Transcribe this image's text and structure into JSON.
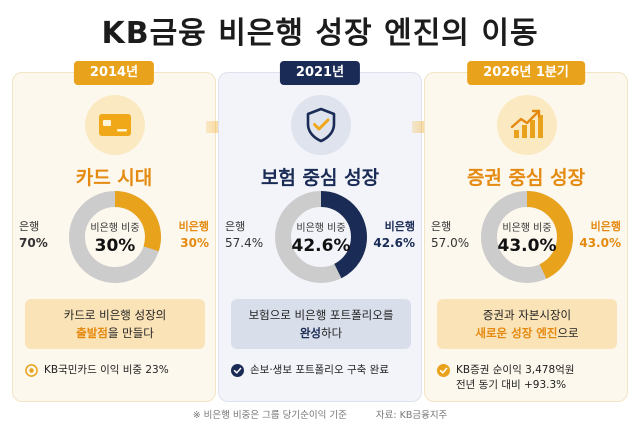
{
  "title": "KB금융 비은행 성장 엔진의 이동",
  "colors": {
    "gold": "#e9a21b",
    "gold_text": "#e48a10",
    "navy": "#1a2b55",
    "gray": "#cccccc"
  },
  "panels": [
    {
      "year": "2014년",
      "icon": "credit-card-icon",
      "heading": "카드 시대",
      "left_label": "은행",
      "left_value": "70%",
      "right_label": "비은행",
      "right_value": "30%",
      "center_label": "비은행 비중",
      "center_value": "30%",
      "nonbank_share": 30,
      "box_line1": "카드로 비은행 성장의",
      "box_highlight": "출발점",
      "box_rest": "을 만들다",
      "note_line1": "KB국민카드 이익 비중 23%",
      "note_line2": ""
    },
    {
      "year": "2021년",
      "icon": "shield-check-icon",
      "heading": "보험 중심 성장",
      "left_label": "은행",
      "left_value": "57.4%",
      "right_label": "비은행",
      "right_value": "42.6%",
      "center_label": "비은행 비중",
      "center_value": "42.6%",
      "nonbank_share": 42.6,
      "box_line1": "보험으로 비은행 포트폴리오를",
      "box_highlight": "완성",
      "box_rest": "하다",
      "note_line1": "손보·생보 포트폴리오 구축 완료",
      "note_line2": ""
    },
    {
      "year": "2026년 1분기",
      "icon": "growth-chart-icon",
      "heading": "증권 중심 성장",
      "left_label": "은행",
      "left_value": "57.0%",
      "right_label": "비은행",
      "right_value": "43.0%",
      "center_label": "비은행 비중",
      "center_value": "43.0%",
      "nonbank_share": 43,
      "box_line1": "증권과 자본시장이",
      "box_highlight": "새로운 성장 엔진",
      "box_rest": "으로",
      "note_line1": "KB증권 순이익 3,478억원",
      "note_line2": "전년 동기 대비 +93.3%"
    }
  ],
  "footer": {
    "note": "※ 비은행 비중은 그룹 당기순이익 기준",
    "source": "자료: KB금융지주"
  }
}
